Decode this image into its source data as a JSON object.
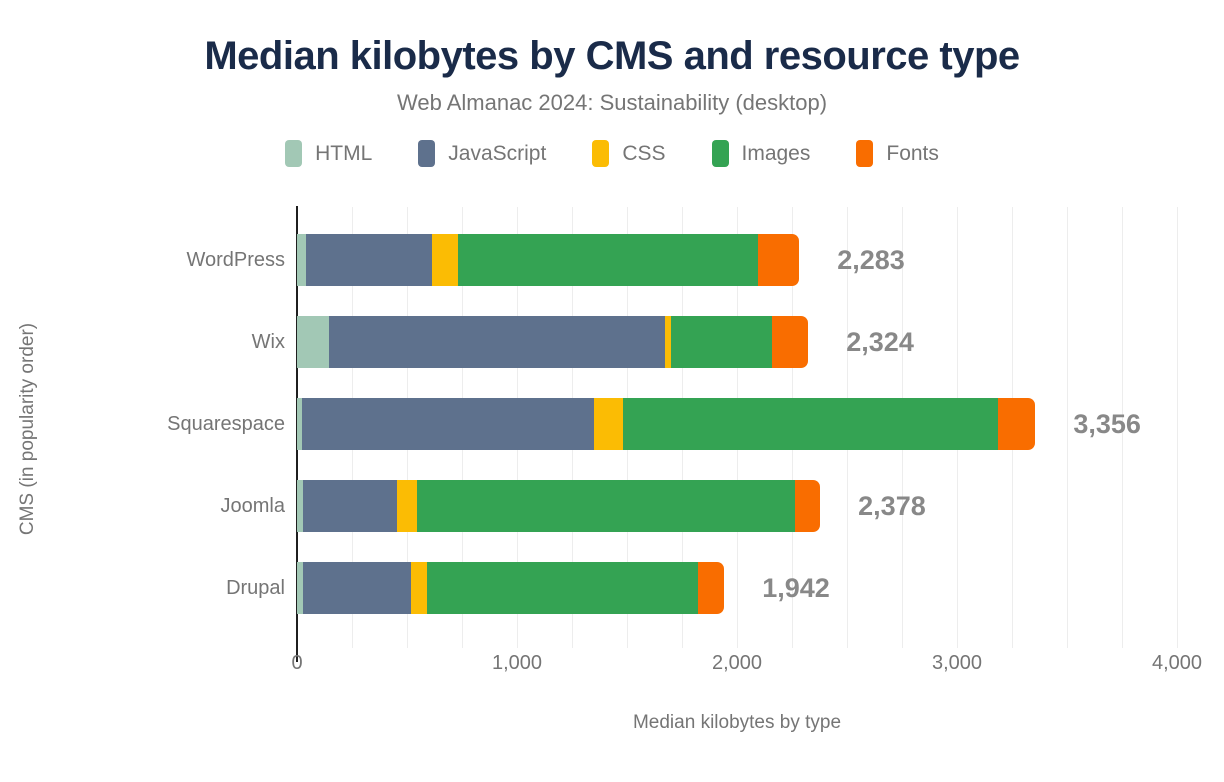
{
  "header": {
    "title": "Median kilobytes by CMS and resource type",
    "subtitle": "Web Almanac 2024: Sustainability (desktop)"
  },
  "chart_data": {
    "type": "bar",
    "stacked": true,
    "orientation": "horizontal",
    "title": "Median kilobytes by CMS and resource type",
    "subtitle": "Web Almanac 2024: Sustainability (desktop)",
    "categories": [
      "WordPress",
      "Wix",
      "Squarespace",
      "Joomla",
      "Drupal"
    ],
    "series": [
      {
        "name": "HTML",
        "color": "#a2c8b5",
        "values": [
          40,
          145,
          24,
          28,
          27
        ]
      },
      {
        "name": "JavaScript",
        "color": "#5e718d",
        "values": [
          575,
          1530,
          1325,
          428,
          492
        ]
      },
      {
        "name": "CSS",
        "color": "#fbbc04",
        "values": [
          115,
          25,
          135,
          88,
          73
        ]
      },
      {
        "name": "Images",
        "color": "#34a353",
        "values": [
          1365,
          460,
          1701,
          1720,
          1232
        ]
      },
      {
        "name": "Fonts",
        "color": "#f96d00",
        "values": [
          188,
          164,
          171,
          114,
          118
        ]
      }
    ],
    "totals": [
      2283,
      2324,
      3356,
      2378,
      1942
    ],
    "total_labels": [
      "2,283",
      "2,324",
      "3,356",
      "2,378",
      "1,942"
    ],
    "xlabel": "Median kilobytes by type",
    "ylabel": "CMS (in popularity order)",
    "xlim": [
      0,
      4000
    ],
    "xticks": [
      0,
      1000,
      2000,
      3000,
      4000
    ],
    "xtick_labels": [
      "0",
      "1,000",
      "2,000",
      "3,000",
      "4,000"
    ],
    "gridline_step": 250,
    "legend_position": "top",
    "grid": true,
    "colors": {
      "title": "#1a2b49",
      "text_muted": "#757575",
      "total_label": "#888888",
      "axis": "#1f1f1f",
      "gridline": "#ededed",
      "background": "#ffffff"
    }
  }
}
